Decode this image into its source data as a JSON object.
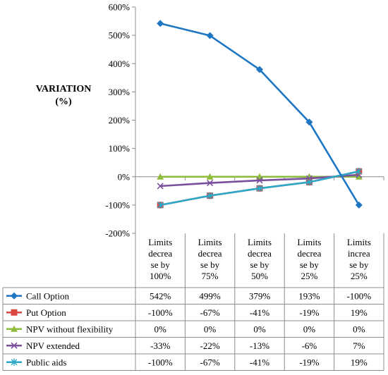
{
  "chart_data": {
    "type": "line",
    "title": "",
    "ylabel": "VARIATION",
    "ylabel_unit": "(%)",
    "ylim": [
      -200,
      600
    ],
    "yticks": [
      "-200%",
      "-100%",
      "0%",
      "100%",
      "200%",
      "300%",
      "400%",
      "500%",
      "600%"
    ],
    "ytick_values": [
      -200,
      -100,
      0,
      100,
      200,
      300,
      400,
      500,
      600
    ],
    "grid": false,
    "legend": "data-table",
    "categories": [
      "Limits decrease by 100%",
      "Limits decrease by 75%",
      "Limits decrease by 50%",
      "Limits decrease by 25%",
      "Limits increase by 25%"
    ],
    "category_lines": [
      [
        "Limits",
        "decrea",
        "se by",
        "100%"
      ],
      [
        "Limits",
        "decrea",
        "se by",
        "75%"
      ],
      [
        "Limits",
        "decrea",
        "se by",
        "50%"
      ],
      [
        "Limits",
        "decrea",
        "se by",
        "25%"
      ],
      [
        "Limits",
        "increa",
        "se by",
        "25%"
      ]
    ],
    "series": [
      {
        "name": "Call Option",
        "values": [
          542,
          499,
          379,
          193,
          -100
        ],
        "labels": [
          "542%",
          "499%",
          "379%",
          "193%",
          "-100%"
        ],
        "color": "#1f77c4",
        "marker": "diamond"
      },
      {
        "name": "Put Option",
        "values": [
          -100,
          -67,
          -41,
          -19,
          19
        ],
        "labels": [
          "-100%",
          "-67%",
          "-41%",
          "-19%",
          "19%"
        ],
        "color": "#d9473f",
        "marker": "square"
      },
      {
        "name": "NPV without flexibility",
        "values": [
          0,
          0,
          0,
          0,
          0
        ],
        "labels": [
          "0%",
          "0%",
          "0%",
          "0%",
          "0%"
        ],
        "color": "#8dbb3c",
        "marker": "triangle"
      },
      {
        "name": "NPV extended",
        "values": [
          -33,
          -22,
          -13,
          -6,
          7
        ],
        "labels": [
          "-33%",
          "-22%",
          "-13%",
          "-6%",
          "7%"
        ],
        "color": "#7a4f9e",
        "marker": "x"
      },
      {
        "name": "Public aids",
        "values": [
          -100,
          -67,
          -41,
          -19,
          19
        ],
        "labels": [
          "-100%",
          "-67%",
          "-41%",
          "-19%",
          "19%"
        ],
        "color": "#2aa9c9",
        "marker": "star"
      }
    ]
  }
}
